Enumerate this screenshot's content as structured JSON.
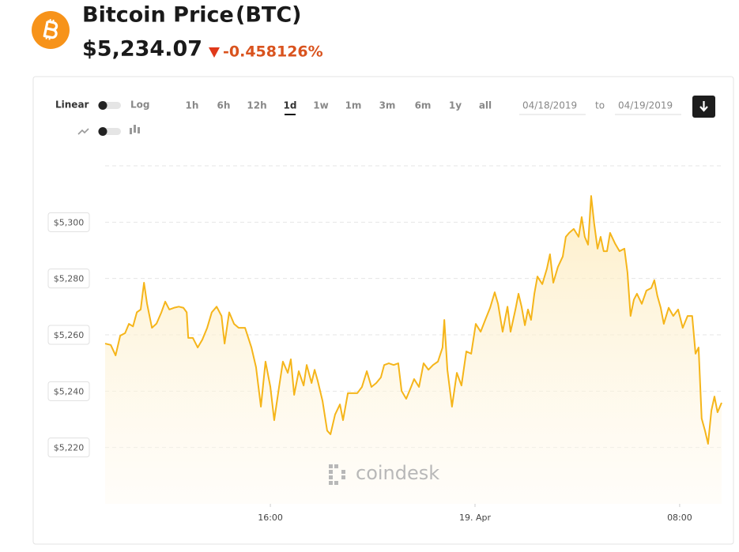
{
  "header": {
    "title": "Bitcoin Price",
    "symbol": "(BTC)",
    "price": "$5,234.07",
    "change": "-0.458126%"
  },
  "controls": {
    "scales": [
      "Linear",
      "Log"
    ],
    "ranges": [
      "1h",
      "6h",
      "12h",
      "1d",
      "1w",
      "1m",
      "3m",
      "6m",
      "1y",
      "all"
    ],
    "selected_range": "1d",
    "from": "04/18/2019",
    "to_label": "to",
    "to": "04/19/2019"
  },
  "watermark": "coindesk",
  "chart_data": {
    "type": "area",
    "color": "#f5b51a",
    "x": [
      9.54,
      9.76,
      9.95,
      10.13,
      10.32,
      10.47,
      10.63,
      10.78,
      10.93,
      11.06,
      11.18,
      11.37,
      11.55,
      11.74,
      11.89,
      12.05,
      12.23,
      12.42,
      12.6,
      12.73,
      12.79,
      12.97,
      13.16,
      13.34,
      13.53,
      13.71,
      13.9,
      14.09,
      14.21,
      14.39,
      14.58,
      14.76,
      15.01,
      15.26,
      15.44,
      15.63,
      15.81,
      16,
      16.15,
      16.34,
      16.49,
      16.68,
      16.8,
      16.93,
      17.11,
      17.3,
      17.42,
      17.61,
      17.73,
      17.85,
      18.04,
      18.22,
      18.35,
      18.53,
      18.72,
      18.84,
      19.03,
      19.21,
      19.4,
      19.58,
      19.77,
      19.95,
      20.14,
      20.32,
      20.45,
      20.63,
      20.82,
      21,
      21.13,
      21.31,
      21.5,
      21.62,
      21.81,
      21.99,
      22.18,
      22.36,
      22.55,
      22.73,
      22.8,
      22.92,
      23.1,
      23.29,
      23.47,
      23.66,
      23.85,
      24.03,
      24.22,
      24.4,
      24.59,
      24.77,
      24.9,
      25.08,
      25.27,
      25.39,
      25.58,
      25.7,
      25.82,
      25.95,
      26.07,
      26.19,
      26.32,
      26.44,
      26.63,
      26.81,
      26.93,
      27.06,
      27.24,
      27.43,
      27.55,
      27.68,
      27.86,
      28.05,
      28.17,
      28.29,
      28.42,
      28.54,
      28.66,
      28.79,
      28.91,
      29.03,
      29.16,
      29.28,
      29.47,
      29.65,
      29.84,
      29.96,
      30.08,
      30.21,
      30.33,
      30.52,
      30.7,
      30.89,
      31.01,
      31.13,
      31.26,
      31.38,
      31.57,
      31.75,
      31.94,
      32.12,
      32.31,
      32.49,
      32.62,
      32.74,
      32.86,
      32.99,
      33.11,
      33.24,
      33.36,
      33.48,
      33.64
    ],
    "values": [
      5256.9,
      5256.4,
      5252.7,
      5259.7,
      5260.6,
      5263.9,
      5263,
      5268,
      5269,
      5278.5,
      5271,
      5262.5,
      5264,
      5268,
      5271.8,
      5269,
      5269.6,
      5270,
      5269.6,
      5268,
      5258.9,
      5258.9,
      5255.5,
      5258.3,
      5262.5,
      5268,
      5270,
      5266.7,
      5256.9,
      5268,
      5263.9,
      5262.5,
      5262.5,
      5255.5,
      5248.5,
      5234.5,
      5250.5,
      5241.5,
      5229.7,
      5241.5,
      5250.5,
      5246.5,
      5251.3,
      5238.7,
      5247.1,
      5242,
      5249.3,
      5242.9,
      5247.6,
      5243.7,
      5236.5,
      5226,
      5224.7,
      5231.7,
      5235.3,
      5229.7,
      5239.3,
      5239.3,
      5239.3,
      5241.5,
      5247.1,
      5241.5,
      5242.9,
      5244.9,
      5249.3,
      5249.9,
      5249.3,
      5249.9,
      5240.1,
      5237.3,
      5241.5,
      5244.3,
      5241.5,
      5249.9,
      5247.6,
      5249.3,
      5250.5,
      5255.5,
      5265.3,
      5247.6,
      5234.5,
      5246.5,
      5242,
      5254.1,
      5253.3,
      5263.9,
      5261.1,
      5265.3,
      5269.6,
      5275.1,
      5271,
      5261.1,
      5270,
      5261.1,
      5269,
      5274.6,
      5270,
      5263.4,
      5269,
      5265.3,
      5274.6,
      5280.7,
      5278,
      5283.5,
      5288.6,
      5278.5,
      5284.1,
      5287.8,
      5294.8,
      5296.2,
      5297.6,
      5294.8,
      5301.8,
      5294.8,
      5292,
      5309.3,
      5299.4,
      5290.6,
      5294.8,
      5289.7,
      5289.7,
      5296.2,
      5292.5,
      5289.7,
      5290.6,
      5282.1,
      5266.7,
      5272.5,
      5274.6,
      5271,
      5275.7,
      5276.6,
      5279.4,
      5273.8,
      5269.6,
      5263.9,
      5269.6,
      5266.7,
      5269,
      5262.5,
      5266.7,
      5266.7,
      5253.3,
      5255.5,
      5230.3,
      5226,
      5221.3,
      5233.1,
      5238.1,
      5232.5,
      5235.9
    ],
    "xlim": [
      9.54,
      33.64
    ],
    "xticks": [
      {
        "value": 16,
        "label": "16:00"
      },
      {
        "value": 24,
        "label": "19. Apr"
      },
      {
        "value": 32,
        "label": "08:00"
      }
    ],
    "ylim": [
      5200,
      5320
    ],
    "yticks": [
      {
        "value": 5220,
        "label": "$5,220"
      },
      {
        "value": 5240,
        "label": "$5,240"
      },
      {
        "value": 5260,
        "label": "$5,260"
      },
      {
        "value": 5280,
        "label": "$5,280"
      },
      {
        "value": 5300,
        "label": "$5,300"
      }
    ],
    "grid": true
  }
}
